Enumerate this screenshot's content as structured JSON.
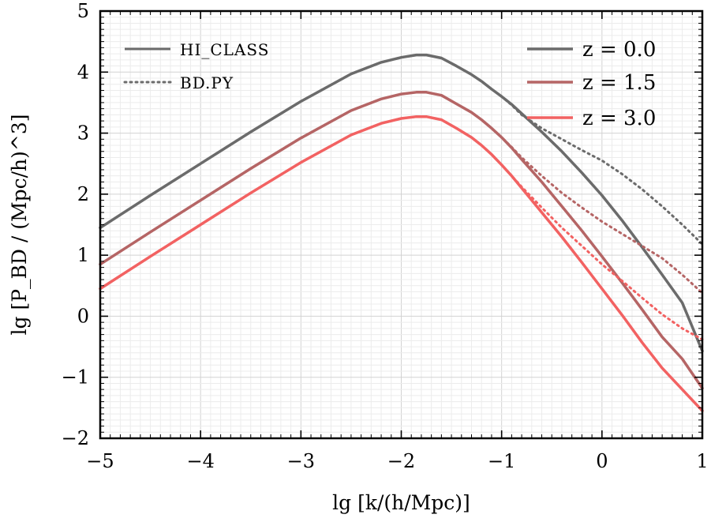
{
  "chart_data": {
    "type": "line",
    "title": "",
    "xlabel": "lg [k/(h/Mpc)]",
    "ylabel": "lg [P_BD / (Mpc/h)^3]",
    "xlim": [
      -5,
      1
    ],
    "ylim": [
      -2,
      5
    ],
    "x_ticks": [
      -5,
      -4,
      -3,
      -2,
      -1,
      0,
      1
    ],
    "y_ticks": [
      -2,
      -1,
      0,
      1,
      2,
      3,
      4,
      5
    ],
    "x_tick_labels": [
      "−5",
      "−4",
      "−3",
      "−2",
      "−1",
      "0",
      "1"
    ],
    "y_tick_labels": [
      "−2",
      "−1",
      "0",
      "1",
      "2",
      "3",
      "4",
      "5"
    ],
    "grid": true,
    "legend_style": {
      "position": "top-left",
      "entries": [
        {
          "label": "HI_CLASS",
          "style": "solid"
        },
        {
          "label": "BD.PY",
          "style": "dotted"
        }
      ]
    },
    "legend_redshift": {
      "position": "top-right",
      "entries": [
        {
          "label": "z = 0.0",
          "color": "#6b6b6b"
        },
        {
          "label": "z = 1.5",
          "color": "#b56565"
        },
        {
          "label": "z = 3.0",
          "color": "#f26262"
        }
      ]
    },
    "series": [
      {
        "name": "z = 0.0",
        "color": "#6b6b6b",
        "hi_class": {
          "x": [
            -5,
            -4.5,
            -4,
            -3.5,
            -3,
            -2.5,
            -2.2,
            -2.0,
            -1.85,
            -1.75,
            -1.6,
            -1.45,
            -1.3,
            -1.2,
            -1.1,
            -1.0,
            -0.9,
            -0.8,
            -0.6,
            -0.4,
            -0.2,
            0.0,
            0.2,
            0.4,
            0.6,
            0.8,
            1.0
          ],
          "y": [
            1.45,
            1.98,
            2.5,
            3.02,
            3.52,
            3.97,
            4.16,
            4.24,
            4.28,
            4.28,
            4.23,
            4.1,
            3.96,
            3.85,
            3.72,
            3.6,
            3.47,
            3.32,
            3.02,
            2.7,
            2.35,
            1.98,
            1.57,
            1.13,
            0.68,
            0.22,
            -0.57
          ]
        },
        "bd_py": {
          "x": [
            -5,
            -4.5,
            -4,
            -3.5,
            -3,
            -2.5,
            -2.2,
            -2.0,
            -1.85,
            -1.75,
            -1.6,
            -1.45,
            -1.3,
            -1.2,
            -1.1,
            -1.0,
            -0.9,
            -0.8,
            -0.6,
            -0.4,
            -0.2,
            0.0,
            0.2,
            0.4,
            0.6,
            0.8,
            1.0
          ],
          "y": [
            1.45,
            1.98,
            2.5,
            3.02,
            3.52,
            3.97,
            4.16,
            4.24,
            4.28,
            4.28,
            4.23,
            4.1,
            3.96,
            3.85,
            3.72,
            3.6,
            3.46,
            3.3,
            3.08,
            2.9,
            2.72,
            2.55,
            2.33,
            2.08,
            1.8,
            1.5,
            1.18
          ]
        }
      },
      {
        "name": "z = 1.5",
        "color": "#b56565",
        "hi_class": {
          "x": [
            -5,
            -4.5,
            -4,
            -3.5,
            -3,
            -2.5,
            -2.2,
            -2.0,
            -1.85,
            -1.75,
            -1.6,
            -1.45,
            -1.3,
            -1.2,
            -1.1,
            -1.0,
            -0.9,
            -0.8,
            -0.6,
            -0.4,
            -0.2,
            0.0,
            0.2,
            0.4,
            0.6,
            0.8,
            1.0
          ],
          "y": [
            0.85,
            1.38,
            1.9,
            2.42,
            2.92,
            3.37,
            3.56,
            3.64,
            3.67,
            3.67,
            3.62,
            3.48,
            3.34,
            3.22,
            3.08,
            2.93,
            2.76,
            2.57,
            2.2,
            1.8,
            1.4,
            0.98,
            0.55,
            0.11,
            -0.34,
            -0.7,
            -1.18
          ]
        },
        "bd_py": {
          "x": [
            -5,
            -4.5,
            -4,
            -3.5,
            -3,
            -2.5,
            -2.2,
            -2.0,
            -1.85,
            -1.75,
            -1.6,
            -1.45,
            -1.3,
            -1.2,
            -1.1,
            -1.0,
            -0.9,
            -0.8,
            -0.6,
            -0.4,
            -0.2,
            0.0,
            0.2,
            0.4,
            0.6,
            0.8,
            1.0
          ],
          "y": [
            0.85,
            1.38,
            1.9,
            2.42,
            2.92,
            3.37,
            3.56,
            3.64,
            3.67,
            3.67,
            3.62,
            3.48,
            3.34,
            3.22,
            3.08,
            2.93,
            2.77,
            2.6,
            2.3,
            2.02,
            1.78,
            1.55,
            1.35,
            1.15,
            0.95,
            0.68,
            0.38
          ]
        }
      },
      {
        "name": "z = 3.0",
        "color": "#f26262",
        "hi_class": {
          "x": [
            -5,
            -4.5,
            -4,
            -3.5,
            -3,
            -2.5,
            -2.2,
            -2.0,
            -1.85,
            -1.75,
            -1.6,
            -1.45,
            -1.3,
            -1.2,
            -1.1,
            -1.0,
            -0.9,
            -0.8,
            -0.6,
            -0.4,
            -0.2,
            0.0,
            0.2,
            0.4,
            0.6,
            0.8,
            1.0
          ],
          "y": [
            0.45,
            0.98,
            1.5,
            2.02,
            2.52,
            2.97,
            3.16,
            3.24,
            3.27,
            3.27,
            3.22,
            3.08,
            2.93,
            2.8,
            2.65,
            2.48,
            2.3,
            2.1,
            1.7,
            1.3,
            0.88,
            0.45,
            0.02,
            -0.43,
            -0.85,
            -1.2,
            -1.55
          ]
        },
        "bd_py": {
          "x": [
            -5,
            -4.5,
            -4,
            -3.5,
            -3,
            -2.5,
            -2.2,
            -2.0,
            -1.85,
            -1.75,
            -1.6,
            -1.45,
            -1.3,
            -1.2,
            -1.1,
            -1.0,
            -0.9,
            -0.8,
            -0.6,
            -0.4,
            -0.2,
            0.0,
            0.2,
            0.4,
            0.6,
            0.8,
            1.0
          ],
          "y": [
            0.45,
            0.98,
            1.5,
            2.02,
            2.52,
            2.97,
            3.16,
            3.24,
            3.27,
            3.27,
            3.22,
            3.08,
            2.93,
            2.8,
            2.65,
            2.48,
            2.3,
            2.12,
            1.78,
            1.45,
            1.15,
            0.85,
            0.58,
            0.3,
            0.03,
            -0.2,
            -0.38
          ]
        }
      }
    ]
  }
}
